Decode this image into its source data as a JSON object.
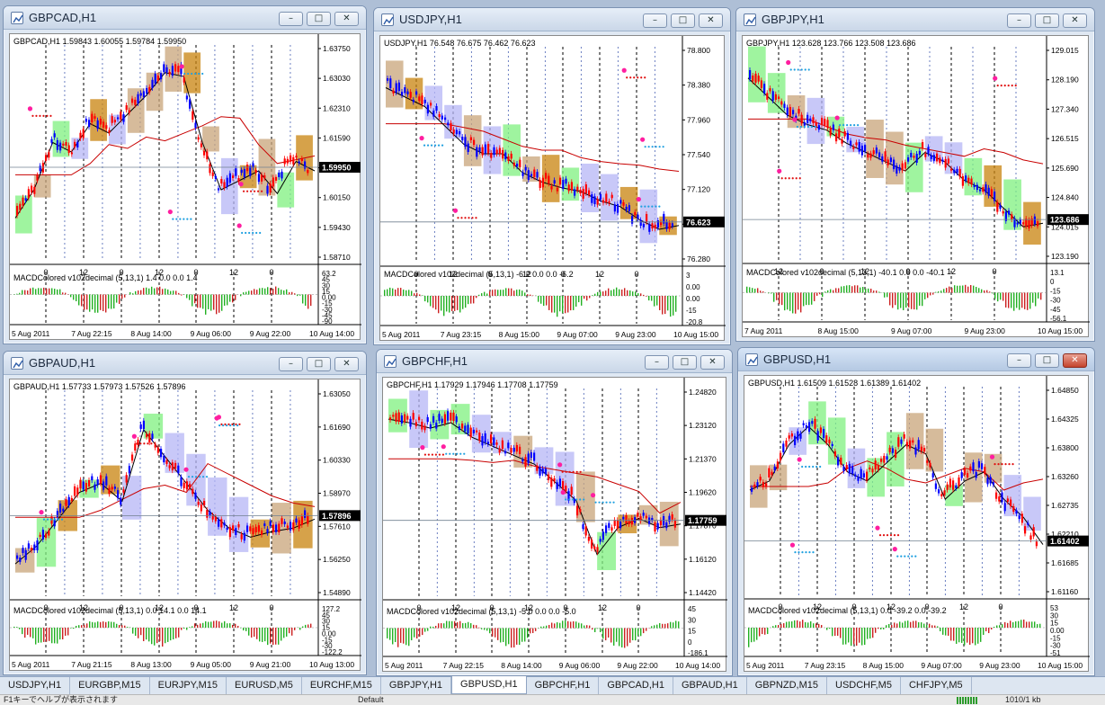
{
  "windows": [
    {
      "id": "gbpcad",
      "title": "GBPCAD,H1",
      "header": "GBPCAD,H1  1.59843 1.60055 1.59784 1.59950",
      "price_labels": [
        "1.63750",
        "1.63030",
        "1.62310",
        "1.61590",
        "1.60870",
        "1.60150",
        "1.59430",
        "1.58710"
      ],
      "current_price": "1.59950",
      "hour_labels": [
        "0",
        "12",
        "0",
        "12",
        "0",
        "12",
        "0"
      ],
      "macd_header": "MACDColored v102decimal (5,13,1) 1.4 0.0 0.0 1.4",
      "macd_labels": [
        "63.2",
        "45",
        "30",
        "15",
        "0.00",
        "-15",
        "-30",
        "-45",
        "-90"
      ],
      "dates": [
        "5 Aug 2011",
        "7 Aug 22:15",
        "8 Aug 14:00",
        "9 Aug 06:00",
        "9 Aug 22:00",
        "10 Aug 14:00"
      ],
      "buttons": {
        "minimize": "–",
        "restore": "□",
        "close": "✕"
      }
    },
    {
      "id": "usdjpy",
      "title": "USDJPY,H1",
      "header": "USDJPY,H1  76.548 76.675 76.462 76.623",
      "price_labels": [
        "78.800",
        "78.380",
        "77.960",
        "77.540",
        "77.120",
        "76.700",
        "76.280"
      ],
      "current_price": "76.623",
      "hour_labels": [
        "0",
        "12",
        "0",
        "12",
        "0",
        "12",
        "0"
      ],
      "macd_header": "MACDColored v102decimal (5,13,1) -6.2 0.0 0.0 -6.2",
      "macd_labels": [
        "3",
        "0.00",
        "0.00",
        "-15",
        "-20.8"
      ],
      "dates": [
        "5 Aug 2011",
        "7 Aug 23:15",
        "8 Aug 15:00",
        "9 Aug 07:00",
        "9 Aug 23:00",
        "10 Aug 15:00"
      ],
      "buttons": {
        "minimize": "–",
        "restore": "□",
        "close": "✕"
      }
    },
    {
      "id": "gbpjpy",
      "title": "GBPJPY,H1",
      "header": "GBPJPY,H1  123.628 123.766 123.508 123.686",
      "price_labels": [
        "129.015",
        "128.190",
        "127.340",
        "126.515",
        "125.690",
        "124.840",
        "124.015",
        "123.190"
      ],
      "current_price": "123.686",
      "hour_labels": [
        "12",
        "0",
        "12",
        "0",
        "12",
        "0"
      ],
      "macd_header": "MACDColored v102decimal (5,13,1) -40.1 0.0 0.0 -40.1",
      "macd_labels": [
        "13.1",
        "0",
        "-15",
        "-30",
        "-45",
        "-56.1"
      ],
      "dates": [
        "7 Aug 2011",
        "8 Aug 15:00",
        "9 Aug 07:00",
        "9 Aug 23:00",
        "10 Aug 15:00"
      ],
      "buttons": {
        "minimize": "–",
        "restore": "□",
        "close": "✕"
      }
    },
    {
      "id": "gbpaud",
      "title": "GBPAUD,H1",
      "header": "GBPAUD,H1  1.57733 1.57973 1.57526 1.57896",
      "price_labels": [
        "1.63050",
        "1.61690",
        "1.60330",
        "1.58970",
        "1.57610",
        "1.56250",
        "1.54890"
      ],
      "current_price": "1.57896",
      "hour_labels": [
        "0",
        "12",
        "0",
        "12",
        "0",
        "12",
        "0"
      ],
      "macd_header": "MACDColored v102decimal (5,13,1) 0.0 14.1 0.0 14.1",
      "macd_labels": [
        "127.2",
        "45",
        "30",
        "15",
        "0.00",
        "-15",
        "-30",
        "-122.2"
      ],
      "dates": [
        "5 Aug 2011",
        "7 Aug 21:15",
        "8 Aug 13:00",
        "9 Aug 05:00",
        "9 Aug 21:00",
        "10 Aug 13:00"
      ],
      "buttons": {
        "minimize": "–",
        "restore": "□",
        "close": "✕"
      }
    },
    {
      "id": "gbpchf",
      "title": "GBPCHF,H1",
      "header": "GBPCHF,H1  1.17929 1.17946 1.17708 1.17759",
      "price_labels": [
        "1.24820",
        "1.23120",
        "1.21370",
        "1.19620",
        "1.17870",
        "1.16120",
        "1.14420"
      ],
      "current_price": "1.17759",
      "hour_labels": [
        "0",
        "12",
        "0",
        "12",
        "0",
        "12",
        "0"
      ],
      "macd_header": "MACDColored v102decimal (5,13,1) -5.0 0.0 0.0 -5.0",
      "macd_labels": [
        "45",
        "30",
        "15",
        "0",
        "-186.1"
      ],
      "dates": [
        "5 Aug 2011",
        "7 Aug 22:15",
        "8 Aug 14:00",
        "9 Aug 06:00",
        "9 Aug 22:00",
        "10 Aug 14:00"
      ],
      "buttons": {
        "minimize": "–",
        "restore": "□",
        "close": "✕"
      }
    },
    {
      "id": "gbpusd",
      "title": "GBPUSD,H1",
      "header": "GBPUSD,H1  1.61509 1.61528 1.61389 1.61402",
      "price_labels": [
        "1.64850",
        "1.64325",
        "1.63800",
        "1.63260",
        "1.62735",
        "1.62210",
        "1.61685",
        "1.61160"
      ],
      "current_price": "1.61402",
      "hour_labels": [
        "0",
        "12",
        "0",
        "12",
        "0",
        "12",
        "0"
      ],
      "macd_header": "MACDColored v102decimal (5,13,1) 0.0 -39.2 0.0 -39.2",
      "macd_labels": [
        "53",
        "30",
        "15",
        "0.00",
        "-15",
        "-30",
        "-51"
      ],
      "dates": [
        "5 Aug 2011",
        "7 Aug 23:15",
        "8 Aug 15:00",
        "9 Aug 07:00",
        "9 Aug 23:00",
        "10 Aug 15:00"
      ],
      "buttons": {
        "minimize": "–",
        "restore": "□",
        "close": "✕"
      }
    }
  ],
  "tabs": [
    "USDJPY,H1",
    "EURGBP,M15",
    "EURJPY,M15",
    "EURUSD,M5",
    "EURCHF,M15",
    "GBPJPY,H1",
    "GBPUSD,H1",
    "GBPCHF,H1",
    "GBPCAD,H1",
    "GBPAUD,H1",
    "GBPNZD,M15",
    "USDCHF,M5",
    "CHFJPY,M5"
  ],
  "active_tab": "GBPUSD,H1",
  "status": {
    "left": "F1キーでヘルプが表示されます",
    "middle": "Default",
    "right": "1010/1 kb"
  },
  "colors": {
    "bull": "#0000ff",
    "bear": "#ff0000",
    "box_orange": "#c8830d",
    "box_tan": "#c8a47a",
    "box_green": "#7ff07f",
    "box_lavender": "#b5b5f5",
    "ma_red": "#c80000",
    "ma_black": "#000000",
    "macd_green": "#22b022",
    "macd_red": "#cc2020",
    "grid_dash": "#000000",
    "price_line": "#708090"
  }
}
